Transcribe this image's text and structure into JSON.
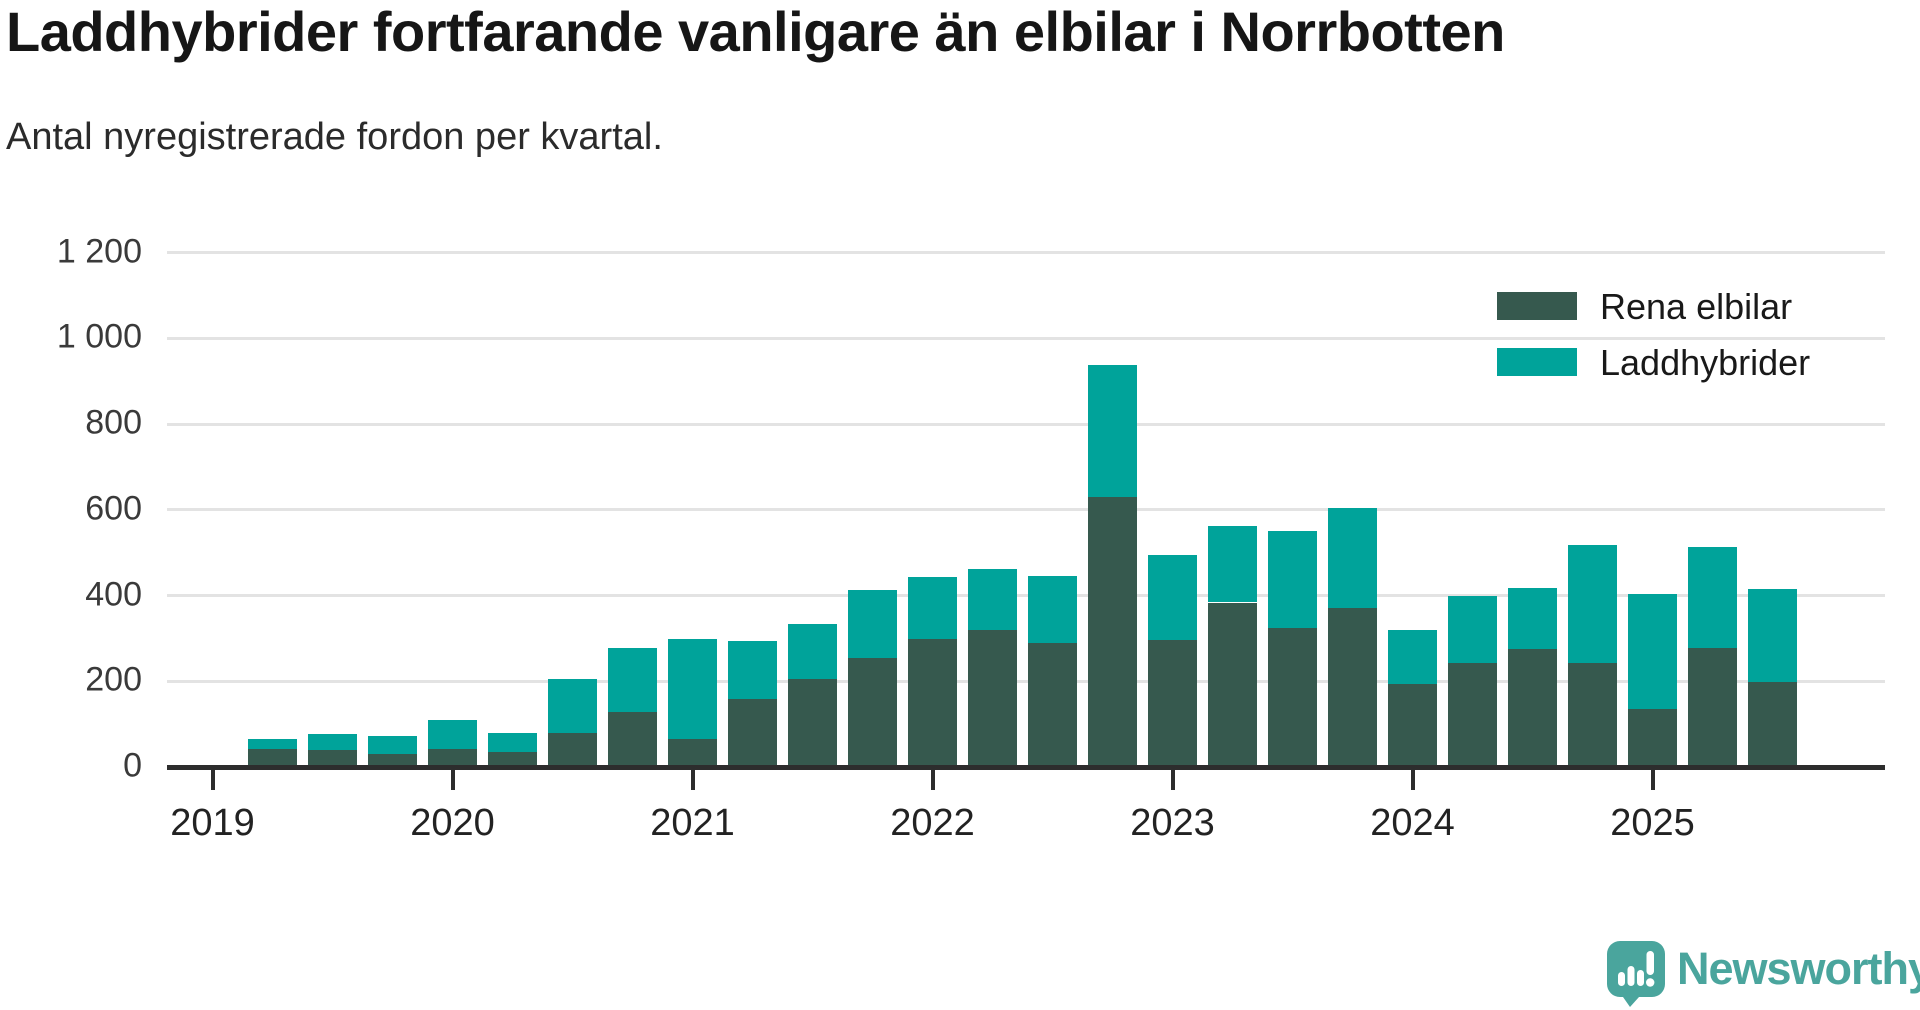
{
  "title": "Laddhybrider fortfarande vanligare än elbilar i Norrbotten",
  "subtitle": "Antal nyregistrerade fordon per kvartal.",
  "colors": {
    "elbilar": "#36594e",
    "laddhybrider": "#00a39a",
    "axis": "#2d2d2d",
    "grid": "#e3e3e3",
    "brand": "#4aa59d"
  },
  "legend": [
    {
      "label": "Rena elbilar",
      "color_key": "elbilar"
    },
    {
      "label": "Laddhybrider",
      "color_key": "laddhybrider"
    }
  ],
  "y_axis": {
    "ticks": [
      {
        "label": "1 200",
        "value": 1200
      },
      {
        "label": "1 000",
        "value": 1000
      },
      {
        "label": "800",
        "value": 800
      },
      {
        "label": "600",
        "value": 600
      },
      {
        "label": "400",
        "value": 400
      },
      {
        "label": "200",
        "value": 200
      },
      {
        "label": "0",
        "value": 0
      }
    ]
  },
  "x_axis": {
    "year_labels": [
      "2019",
      "2020",
      "2021",
      "2022",
      "2023",
      "2024",
      "2025"
    ]
  },
  "chart_data": {
    "type": "bar",
    "stacked": true,
    "title": "Laddhybrider fortfarande vanligare än elbilar i Norrbotten",
    "subtitle": "Antal nyregistrerade fordon per kvartal.",
    "xlabel": "",
    "ylabel": "",
    "ylim": [
      0,
      1200
    ],
    "grid": true,
    "legend_position": "top-right",
    "categories": [
      "2019-Q2",
      "2019-Q3",
      "2019-Q4",
      "2020-Q1",
      "2020-Q2",
      "2020-Q3",
      "2020-Q4",
      "2021-Q1",
      "2021-Q2",
      "2021-Q3",
      "2021-Q4",
      "2022-Q1",
      "2022-Q2",
      "2022-Q3",
      "2022-Q4",
      "2023-Q1",
      "2023-Q2",
      "2023-Q3",
      "2023-Q4",
      "2024-Q1",
      "2024-Q2",
      "2024-Q3",
      "2024-Q4",
      "2025-Q1",
      "2025-Q2",
      "2025-Q3"
    ],
    "series": [
      {
        "name": "Rena elbilar",
        "values": [
          45,
          41,
          33,
          45,
          37,
          82,
          130,
          67,
          160,
          207,
          256,
          300,
          321,
          291,
          632,
          299,
          386,
          326,
          374,
          197,
          246,
          277,
          246,
          138,
          280,
          201
        ]
      },
      {
        "name": "Laddhybrider",
        "values": [
          23,
          39,
          41,
          66,
          45,
          126,
          150,
          235,
          137,
          128,
          159,
          146,
          144,
          157,
          309,
          198,
          178,
          227,
          233,
          126,
          155,
          142,
          273,
          267,
          236,
          216
        ]
      }
    ]
  },
  "logo": {
    "text": "Newsworthy"
  }
}
